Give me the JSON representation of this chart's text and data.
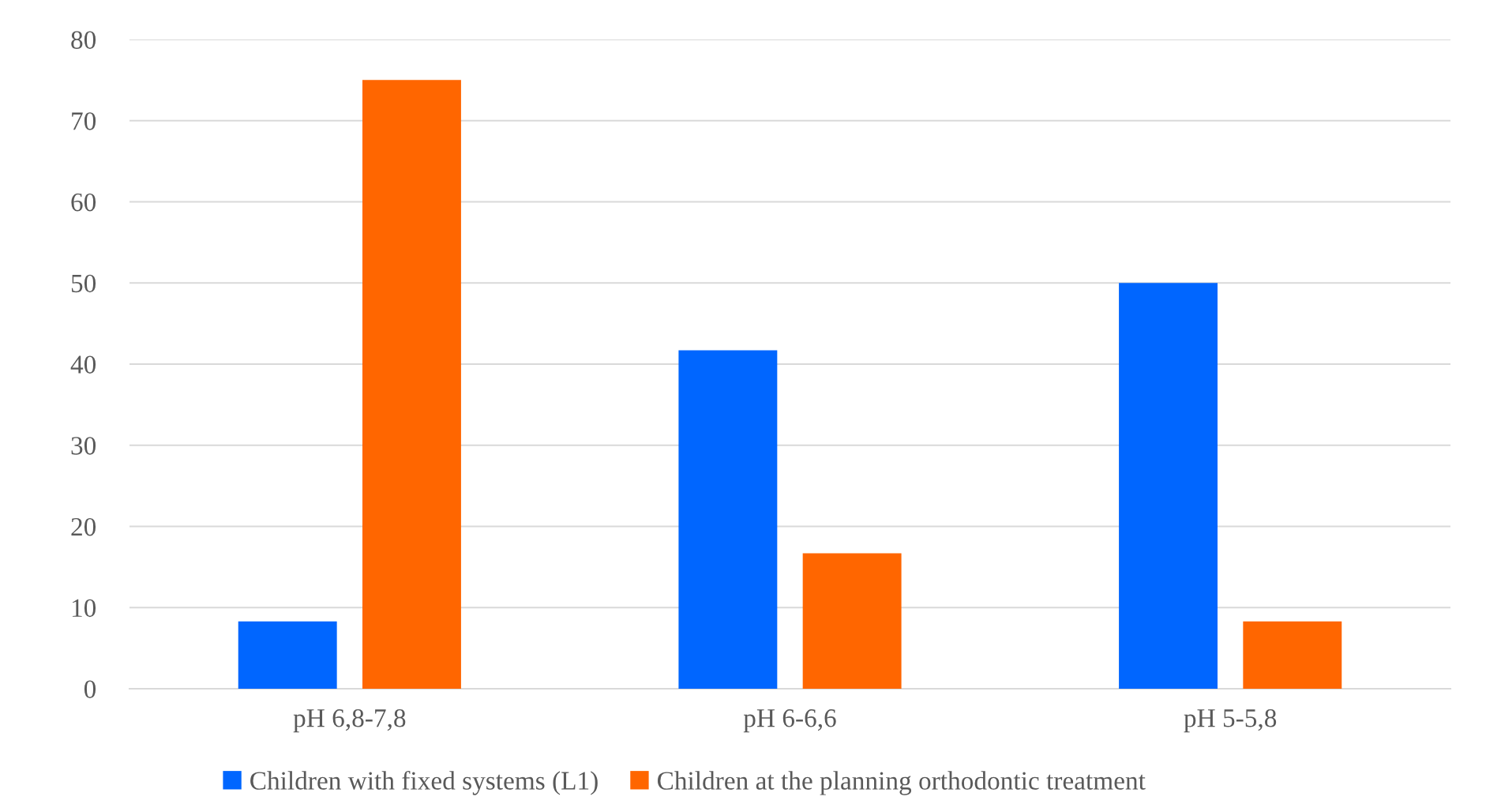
{
  "chart_data": {
    "type": "bar",
    "categories": [
      "pH 6,8-7,8",
      "pH 6-6,6",
      "pH 5-5,8"
    ],
    "series": [
      {
        "name": "Children with fixed systems (L1)",
        "color": "#0066ff",
        "values": [
          8.3,
          41.7,
          50
        ]
      },
      {
        "name": "Children at the planning orthodontic treatment",
        "color": "#ff6600",
        "values": [
          75,
          16.7,
          8.3
        ]
      }
    ],
    "ylim": [
      0,
      80
    ],
    "yticks": [
      0,
      10,
      20,
      30,
      40,
      50,
      60,
      70,
      80
    ],
    "grid": "y",
    "legend": "bottom"
  }
}
